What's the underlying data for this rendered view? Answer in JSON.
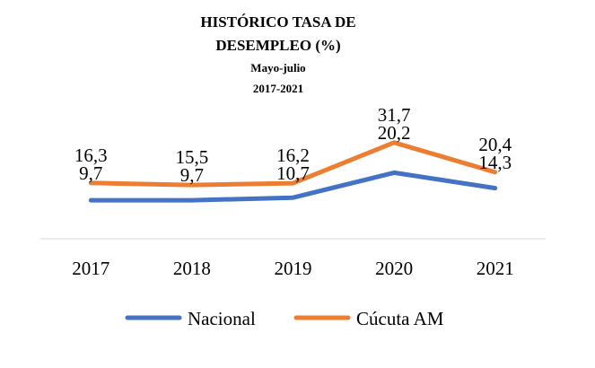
{
  "chart_data": {
    "type": "line",
    "title_lines": [
      "HISTÓRICO TASA DE",
      "DESEMPLEO (%)"
    ],
    "subtitle_lines": [
      "Mayo-julio",
      "2017-2021"
    ],
    "categories": [
      "2017",
      "2018",
      "2019",
      "2020",
      "2021"
    ],
    "series": [
      {
        "name": "Nacional",
        "color": "#4472C4",
        "values": [
          9.7,
          9.7,
          10.7,
          20.2,
          14.3
        ],
        "labels": [
          "9,7",
          "9,7",
          "10,7",
          "20,2",
          "14,3"
        ]
      },
      {
        "name": "Cúcuta AM",
        "color": "#ED7D31",
        "values": [
          16.3,
          15.5,
          16.2,
          31.7,
          20.4
        ],
        "labels": [
          "16,3",
          "15,5",
          "16,2",
          "31,7",
          "20,4"
        ]
      }
    ],
    "ylim": [
      -5,
      60
    ],
    "grid": false,
    "legend_position": "bottom"
  }
}
